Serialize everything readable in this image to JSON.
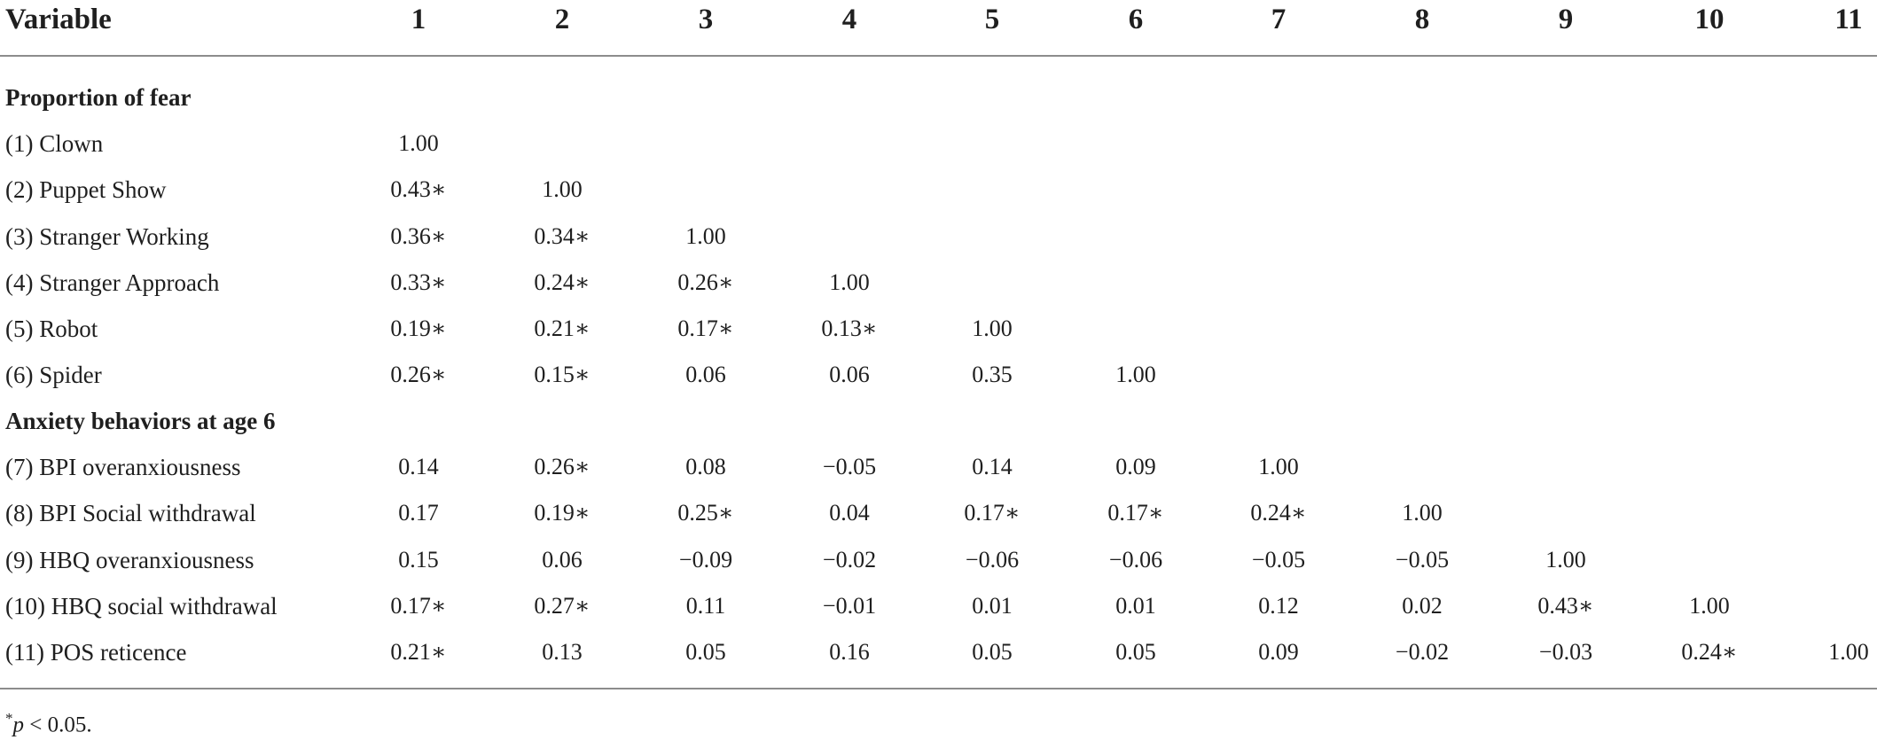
{
  "table": {
    "header": {
      "variable": "Variable",
      "columns": [
        "1",
        "2",
        "3",
        "4",
        "5",
        "6",
        "7",
        "8",
        "9",
        "10",
        "11"
      ]
    },
    "sections": [
      {
        "title": "Proportion of fear",
        "rows": [
          {
            "label": "(1) Clown",
            "values": [
              "1.00"
            ]
          },
          {
            "label": "(2) Puppet Show",
            "values": [
              "0.43∗",
              "1.00"
            ]
          },
          {
            "label": "(3) Stranger Working",
            "values": [
              "0.36∗",
              "0.34∗",
              "1.00"
            ]
          },
          {
            "label": "(4) Stranger Approach",
            "values": [
              "0.33∗",
              "0.24∗",
              "0.26∗",
              "1.00"
            ]
          },
          {
            "label": "(5) Robot",
            "values": [
              "0.19∗",
              "0.21∗",
              "0.17∗",
              "0.13∗",
              "1.00"
            ]
          },
          {
            "label": "(6) Spider",
            "values": [
              "0.26∗",
              "0.15∗",
              "0.06",
              "0.06",
              "0.35",
              "1.00"
            ]
          }
        ]
      },
      {
        "title": "Anxiety behaviors at age 6",
        "rows": [
          {
            "label": "(7) BPI overanxiousness",
            "values": [
              "0.14",
              "0.26∗",
              "0.08",
              "−0.05",
              "0.14",
              "0.09",
              "1.00"
            ]
          },
          {
            "label": "(8) BPI Social withdrawal",
            "values": [
              "0.17",
              "0.19∗",
              "0.25∗",
              "0.04",
              "0.17∗",
              "0.17∗",
              "0.24∗",
              "1.00"
            ]
          },
          {
            "label": "(9) HBQ overanxiousness",
            "values": [
              "0.15",
              "0.06",
              "−0.09",
              "−0.02",
              "−0.06",
              "−0.06",
              "−0.05",
              "−0.05",
              "1.00"
            ]
          },
          {
            "label": "(10) HBQ social withdrawal",
            "values": [
              "0.17∗",
              "0.27∗",
              "0.11",
              "−0.01",
              "0.01",
              "0.01",
              "0.12",
              "0.02",
              "0.43∗",
              "1.00"
            ]
          },
          {
            "label": "(11) POS reticence",
            "values": [
              "0.21∗",
              "0.13",
              "0.05",
              "0.16",
              "0.05",
              "0.05",
              "0.09",
              "−0.02",
              "−0.03",
              "0.24∗",
              "1.00"
            ]
          }
        ]
      }
    ],
    "footnote": {
      "marker": "*",
      "p": "p",
      "rest": " < 0.05."
    }
  }
}
